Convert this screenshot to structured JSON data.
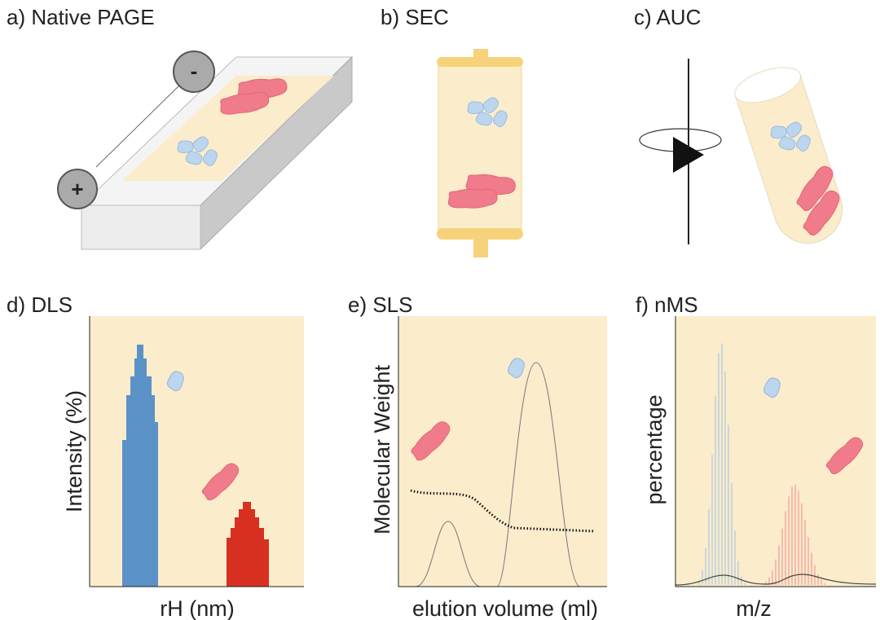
{
  "panels": [
    {
      "label": "a) Native PAGE",
      "electrodes": [
        "-",
        "+"
      ]
    },
    {
      "label": "b) SEC"
    },
    {
      "label": "c) AUC"
    },
    {
      "label": "d) DLS",
      "y_axis": "Intensity (%)",
      "x_axis": "rH (nm)"
    },
    {
      "label": "e) SLS",
      "y_axis": "Molecular Weight",
      "x_axis": "elution volume (ml)"
    },
    {
      "label": "f) nMS",
      "y_axis": "percentage",
      "x_axis": "m/z"
    }
  ]
}
